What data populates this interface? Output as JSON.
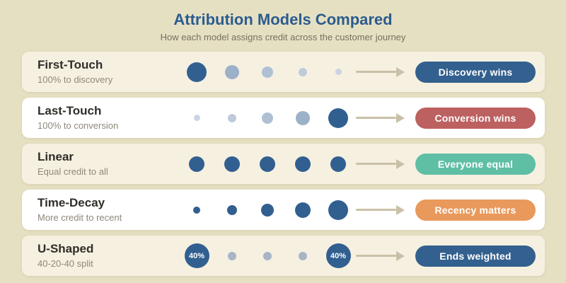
{
  "header": {
    "title": "Attribution Models Compared",
    "subtitle": "How each model assigns credit across the customer journey"
  },
  "theme": {
    "page_bg": "#e6e0c2",
    "card_bg_cream": "#f6f0e1",
    "card_bg_white": "#ffffff",
    "title_color": "#2b5c8f",
    "subtitle_color": "#75705f",
    "model_name_color": "#2f2d28",
    "model_desc_color": "#8e887b",
    "arrow_color": "#c9c0a7",
    "dot_dark_blue": "#315f90",
    "badge_text_color": "#ffffff"
  },
  "journey": {
    "arrow_icon": "arrow-right"
  },
  "rows": [
    {
      "name": "First-Touch",
      "description": "100% to discovery",
      "card_bg": "#f6f0e1",
      "badge": {
        "label": "Discovery wins",
        "color": "#33608e"
      },
      "dots": [
        {
          "size": 28,
          "color": "#315f90",
          "label": ""
        },
        {
          "size": 20,
          "color": "#9cb1c8",
          "label": ""
        },
        {
          "size": 16,
          "color": "#afc0d3",
          "label": ""
        },
        {
          "size": 12,
          "color": "#bfcbdb",
          "label": ""
        },
        {
          "size": 9,
          "color": "#cbd4e1",
          "label": ""
        }
      ]
    },
    {
      "name": "Last-Touch",
      "description": "100% to conversion",
      "card_bg": "#ffffff",
      "badge": {
        "label": "Conversion wins",
        "color": "#bd6060"
      },
      "dots": [
        {
          "size": 9,
          "color": "#cbd4e1",
          "label": ""
        },
        {
          "size": 12,
          "color": "#bfcbdb",
          "label": ""
        },
        {
          "size": 16,
          "color": "#afc0d3",
          "label": ""
        },
        {
          "size": 20,
          "color": "#9cb1c8",
          "label": ""
        },
        {
          "size": 28,
          "color": "#315f90",
          "label": ""
        }
      ]
    },
    {
      "name": "Linear",
      "description": "Equal credit to all",
      "card_bg": "#f6f0e1",
      "badge": {
        "label": "Everyone equal",
        "color": "#5fbfa5"
      },
      "dots": [
        {
          "size": 22,
          "color": "#315f90",
          "label": ""
        },
        {
          "size": 22,
          "color": "#315f90",
          "label": ""
        },
        {
          "size": 22,
          "color": "#315f90",
          "label": ""
        },
        {
          "size": 22,
          "color": "#315f90",
          "label": ""
        },
        {
          "size": 22,
          "color": "#315f90",
          "label": ""
        }
      ]
    },
    {
      "name": "Time-Decay",
      "description": "More credit to recent",
      "card_bg": "#ffffff",
      "badge": {
        "label": "Recency matters",
        "color": "#e9995c"
      },
      "dots": [
        {
          "size": 10,
          "color": "#315f90",
          "label": ""
        },
        {
          "size": 14,
          "color": "#315f90",
          "label": ""
        },
        {
          "size": 18,
          "color": "#315f90",
          "label": ""
        },
        {
          "size": 22,
          "color": "#315f90",
          "label": ""
        },
        {
          "size": 28,
          "color": "#315f90",
          "label": ""
        }
      ]
    },
    {
      "name": "U-Shaped",
      "description": "40-20-40 split",
      "card_bg": "#f6f0e1",
      "badge": {
        "label": "Ends weighted",
        "color": "#33608e"
      },
      "dots": [
        {
          "size": 35,
          "color": "#315f90",
          "label": "40%"
        },
        {
          "size": 12,
          "color": "#a8b5c5",
          "label": ""
        },
        {
          "size": 12,
          "color": "#a8b5c5",
          "label": ""
        },
        {
          "size": 12,
          "color": "#a8b5c5",
          "label": ""
        },
        {
          "size": 35,
          "color": "#315f90",
          "label": "40%"
        }
      ]
    }
  ]
}
